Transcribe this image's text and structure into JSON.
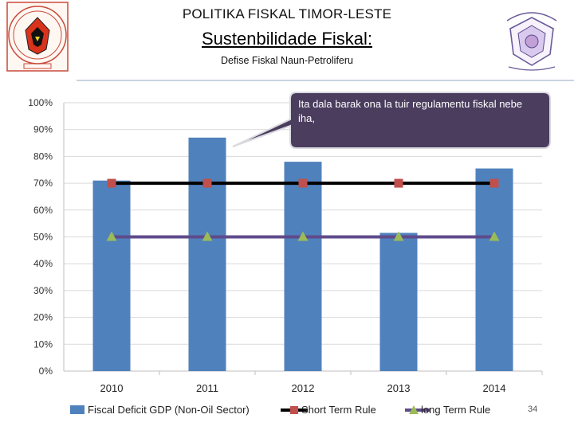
{
  "header": {
    "super_title": "POLITIKA FISKAL TIMOR-LESTE",
    "title": "Sustenbilidade Fiskal:",
    "subtitle": "Defise Fiskal Naun-Petroliferu"
  },
  "callout": {
    "text": "Ita dala barak ona la tuir regulamentu fiskal nebe iha,"
  },
  "slide": {
    "page_number": "34"
  },
  "chart_data": {
    "type": "bar",
    "categories": [
      "2010",
      "2011",
      "2012",
      "2013",
      "2014"
    ],
    "series": [
      {
        "name": "Fiscal Deficit GDP (Non-Oil Sector)",
        "type": "bar",
        "color": "#4f81bd",
        "values": [
          71,
          87,
          78,
          51.5,
          75.5
        ]
      },
      {
        "name": "Short Term Rule",
        "type": "line",
        "color": "#000000",
        "marker": "square",
        "marker_color": "#c0504d",
        "values": [
          70,
          70,
          70,
          70,
          70
        ]
      },
      {
        "name": "long Term Rule",
        "type": "line",
        "color": "#5f4b8b",
        "marker": "triangle",
        "marker_color": "#9bbb59",
        "values": [
          50,
          50,
          50,
          50,
          50
        ]
      }
    ],
    "y_ticks": [
      "0%",
      "10%",
      "20%",
      "30%",
      "40%",
      "50%",
      "60%",
      "70%",
      "80%",
      "90%",
      "100%"
    ],
    "ylim": [
      0,
      100
    ],
    "grid": true,
    "legend_position": "bottom"
  }
}
